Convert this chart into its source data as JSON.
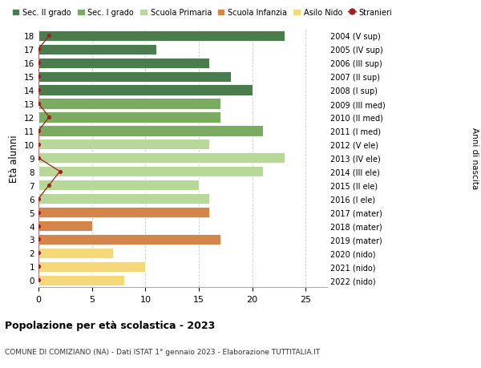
{
  "ages": [
    18,
    17,
    16,
    15,
    14,
    13,
    12,
    11,
    10,
    9,
    8,
    7,
    6,
    5,
    4,
    3,
    2,
    1,
    0
  ],
  "years": [
    "2004 (V sup)",
    "2005 (IV sup)",
    "2006 (III sup)",
    "2007 (II sup)",
    "2008 (I sup)",
    "2009 (III med)",
    "2010 (II med)",
    "2011 (I med)",
    "2012 (V ele)",
    "2013 (IV ele)",
    "2014 (III ele)",
    "2015 (II ele)",
    "2016 (I ele)",
    "2017 (mater)",
    "2018 (mater)",
    "2019 (mater)",
    "2020 (nido)",
    "2021 (nido)",
    "2022 (nido)"
  ],
  "bar_values": [
    23,
    11,
    16,
    18,
    20,
    17,
    17,
    21,
    16,
    23,
    21,
    15,
    16,
    16,
    5,
    17,
    7,
    10,
    8
  ],
  "bar_colors": [
    "#4a7c4e",
    "#4a7c4e",
    "#4a7c4e",
    "#4a7c4e",
    "#4a7c4e",
    "#7aab5e",
    "#7aab5e",
    "#7aab5e",
    "#b8d89a",
    "#b8d89a",
    "#b8d89a",
    "#b8d89a",
    "#b8d89a",
    "#d4854a",
    "#d4854a",
    "#d4854a",
    "#f5d978",
    "#f5d978",
    "#f5d978"
  ],
  "stranieri_values": [
    1,
    0,
    0,
    0,
    0,
    0,
    1,
    0,
    0,
    0,
    2,
    1,
    0,
    0,
    0,
    0,
    0,
    0,
    0
  ],
  "legend_labels": [
    "Sec. II grado",
    "Sec. I grado",
    "Scuola Primaria",
    "Scuola Infanzia",
    "Asilo Nido",
    "Stranieri"
  ],
  "legend_colors": [
    "#4a7c4e",
    "#7aab5e",
    "#b8d89a",
    "#d4854a",
    "#f5d978",
    "#a02020"
  ],
  "ylabel": "Età alunni",
  "right_label": "Anni di nascita",
  "title": "Popolazione per età scolastica - 2023",
  "subtitle": "COMUNE DI COMIZIANO (NA) - Dati ISTAT 1° gennaio 2023 - Elaborazione TUTTITALIA.IT",
  "xlim": [
    0,
    27
  ],
  "background_color": "#ffffff",
  "grid_color": "#cccccc"
}
